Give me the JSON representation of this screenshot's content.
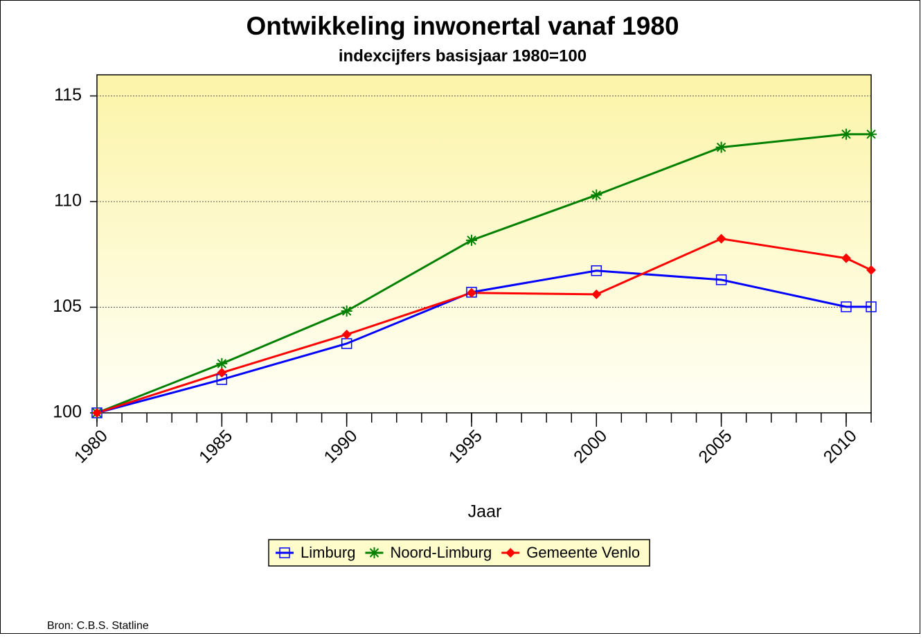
{
  "chart_data": {
    "type": "line",
    "title": "Ontwikkeling inwonertal vanaf 1980",
    "subtitle": "indexcijfers basisjaar 1980=100",
    "x_label": "Jaar",
    "source": "Bron: C.B.S. Statline",
    "x": [
      1980,
      1985,
      1990,
      1995,
      2000,
      2005,
      2010,
      2011
    ],
    "series": [
      {
        "name": "Limburg",
        "color": "#0000ff",
        "marker": "square",
        "values": [
          100,
          101.58,
          103.28,
          105.71,
          106.73,
          106.3,
          105.02,
          105.02
        ]
      },
      {
        "name": "Noord-Limburg",
        "color": "#008000",
        "marker": "asterisk",
        "values": [
          100,
          102.33,
          104.82,
          108.17,
          110.31,
          112.57,
          113.19,
          113.19
        ]
      },
      {
        "name": "Gemeente Venlo",
        "color": "#ff0000",
        "marker": "diamond",
        "values": [
          100,
          101.9,
          103.71,
          105.68,
          105.61,
          108.24,
          107.32,
          106.76
        ]
      }
    ],
    "xlim": [
      1980,
      2011
    ],
    "xticks": [
      1980,
      1985,
      1990,
      1995,
      2000,
      2005,
      2010
    ],
    "xminor": [
      1980,
      1981,
      1982,
      1983,
      1984,
      1985,
      1986,
      1987,
      1988,
      1989,
      1990,
      1991,
      1992,
      1993,
      1994,
      1995,
      1996,
      1997,
      1998,
      1999,
      2000,
      2001,
      2002,
      2003,
      2004,
      2005,
      2006,
      2007,
      2008,
      2009,
      2010,
      2011
    ],
    "ylim": [
      100,
      116
    ],
    "yticks": [
      100,
      105,
      110,
      115
    ],
    "grid": true,
    "legend": "bottom"
  }
}
